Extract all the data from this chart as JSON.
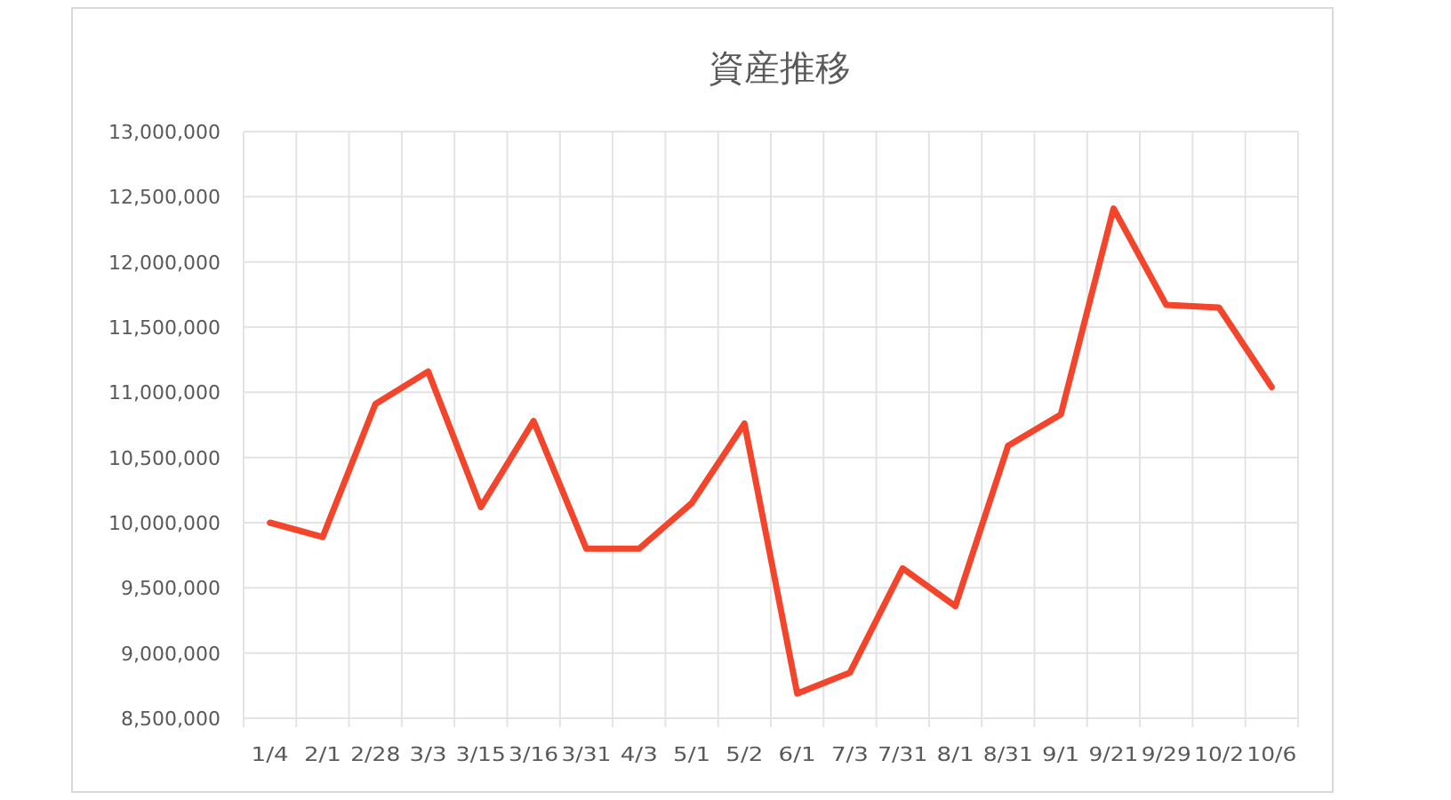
{
  "chart_data": {
    "type": "line",
    "title": "資産推移",
    "categories": [
      "1/4",
      "2/1",
      "2/28",
      "3/3",
      "3/15",
      "3/16",
      "3/31",
      "4/3",
      "5/1",
      "5/2",
      "6/1",
      "7/3",
      "7/31",
      "8/1",
      "8/31",
      "9/1",
      "9/21",
      "9/29",
      "10/2",
      "10/6"
    ],
    "series": [
      {
        "color": "#f2452b",
        "values": [
          10000000,
          9890000,
          10910000,
          11160000,
          10120000,
          10780000,
          9800000,
          9800000,
          10150000,
          10760000,
          8690000,
          8850000,
          9650000,
          9360000,
          10590000,
          10830000,
          12410000,
          11670000,
          11650000,
          11040000
        ]
      }
    ],
    "ylim": [
      8500000,
      13000000
    ],
    "yticks": [
      {
        "value": 8500000,
        "label": "8,500,000"
      },
      {
        "value": 9000000,
        "label": "9,000,000"
      },
      {
        "value": 9500000,
        "label": "9,500,000"
      },
      {
        "value": 10000000,
        "label": "10,000,000"
      },
      {
        "value": 10500000,
        "label": "10,500,000"
      },
      {
        "value": 11000000,
        "label": "11,000,000"
      },
      {
        "value": 11500000,
        "label": "11,500,000"
      },
      {
        "value": 12000000,
        "label": "12,000,000"
      },
      {
        "value": 12500000,
        "label": "12,500,000"
      },
      {
        "value": 13000000,
        "label": "13,000,000"
      }
    ],
    "grid": true
  }
}
